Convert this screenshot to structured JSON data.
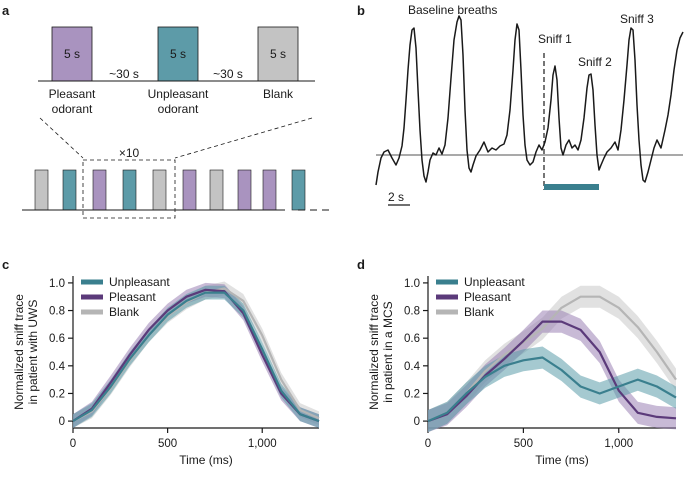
{
  "colors": {
    "pleasant": "#5b3a7a",
    "pleasant_fill": "#9b82b5",
    "unpleasant": "#3a7f8e",
    "unpleasant_fill": "#5b9daa",
    "blank": "#b5b5b5",
    "blank_fill": "#c8c8c8",
    "pleasant_box": "#a993bf",
    "unpleasant_box": "#5d9ba8",
    "blank_box": "#c3c3c3",
    "axis": "#1a1a1a"
  },
  "panel_a": {
    "letter": "a",
    "box_text": "5 s",
    "interval_label": "~30 s",
    "stimuli": [
      {
        "kind": "pleasant",
        "label_line1": "Pleasant",
        "label_line2": "odorant"
      },
      {
        "kind": "unpleasant",
        "label_line1": "Unpleasant",
        "label_line2": "odorant"
      },
      {
        "kind": "blank",
        "label_line1": "Blank",
        "label_line2": ""
      }
    ],
    "repeat_label": "×10",
    "sequence": [
      "blank",
      "unpleasant",
      "pleasant",
      "unpleasant",
      "blank",
      "pleasant",
      "blank",
      "pleasant",
      "pleasant",
      "unpleasant"
    ]
  },
  "panel_b": {
    "letter": "b",
    "title": "Baseline breaths",
    "annotations": [
      "Sniff 1",
      "Sniff 2",
      "Sniff 3"
    ],
    "scale_label": "2 s"
  },
  "chart_data": [
    {
      "panel": "c",
      "type": "line",
      "xlabel": "Time (ms)",
      "ylabel_line1": "Normalized sniff trace",
      "ylabel_line2": "in patient with UWS",
      "xlim": [
        0,
        1300
      ],
      "ylim": [
        -0.05,
        1.05
      ],
      "xticks": [
        0,
        500,
        1000
      ],
      "xtick_labels": [
        "0",
        "500",
        "1,000"
      ],
      "yticks": [
        0,
        0.2,
        0.4,
        0.6,
        0.8,
        1.0
      ],
      "ytick_labels": [
        "0",
        "0.2",
        "0.4",
        "0.6",
        "0.8",
        "1.0"
      ],
      "legend": "top-left",
      "x": [
        0,
        100,
        200,
        300,
        400,
        500,
        600,
        700,
        800,
        900,
        1000,
        1100,
        1200,
        1300
      ],
      "series": [
        {
          "name": "Unpleasant",
          "color_key": "unpleasant",
          "values": [
            0,
            0.08,
            0.25,
            0.45,
            0.62,
            0.77,
            0.87,
            0.93,
            0.93,
            0.8,
            0.52,
            0.22,
            0.05,
            0.0
          ],
          "band": 0.05
        },
        {
          "name": "Pleasant",
          "color_key": "pleasant",
          "values": [
            0,
            0.09,
            0.28,
            0.48,
            0.66,
            0.8,
            0.9,
            0.95,
            0.94,
            0.78,
            0.48,
            0.2,
            0.05,
            0.0
          ],
          "band": 0.05
        },
        {
          "name": "Blank",
          "color_key": "blank",
          "values": [
            0,
            0.07,
            0.24,
            0.44,
            0.62,
            0.76,
            0.86,
            0.93,
            0.96,
            0.87,
            0.62,
            0.3,
            0.08,
            0.02
          ],
          "band": 0.05
        }
      ]
    },
    {
      "panel": "d",
      "type": "line",
      "xlabel": "Time (ms)",
      "ylabel_line1": "Normalized sniff trace",
      "ylabel_line2": "in patient in a MCS",
      "xlim": [
        0,
        1300
      ],
      "ylim": [
        -0.05,
        1.05
      ],
      "xticks": [
        0,
        500,
        1000
      ],
      "xtick_labels": [
        "0",
        "500",
        "1,000"
      ],
      "yticks": [
        0,
        0.2,
        0.4,
        0.6,
        0.8,
        1.0
      ],
      "ytick_labels": [
        "0",
        "0.2",
        "0.4",
        "0.6",
        "0.8",
        "1.0"
      ],
      "legend": "top-left",
      "x": [
        0,
        100,
        200,
        300,
        400,
        500,
        600,
        700,
        800,
        900,
        1000,
        1100,
        1200,
        1300
      ],
      "series": [
        {
          "name": "Unpleasant",
          "color_key": "unpleasant",
          "values": [
            0,
            0.06,
            0.2,
            0.32,
            0.4,
            0.44,
            0.46,
            0.37,
            0.25,
            0.2,
            0.25,
            0.3,
            0.25,
            0.17
          ],
          "band": 0.08
        },
        {
          "name": "Pleasant",
          "color_key": "pleasant",
          "values": [
            0,
            0.05,
            0.18,
            0.33,
            0.45,
            0.58,
            0.72,
            0.72,
            0.66,
            0.5,
            0.22,
            0.06,
            0.03,
            0.02
          ],
          "band": 0.08
        },
        {
          "name": "Blank",
          "color_key": "blank",
          "values": [
            0,
            0.06,
            0.2,
            0.36,
            0.48,
            0.57,
            0.67,
            0.82,
            0.9,
            0.9,
            0.82,
            0.68,
            0.5,
            0.3
          ],
          "band": 0.08
        }
      ]
    }
  ]
}
